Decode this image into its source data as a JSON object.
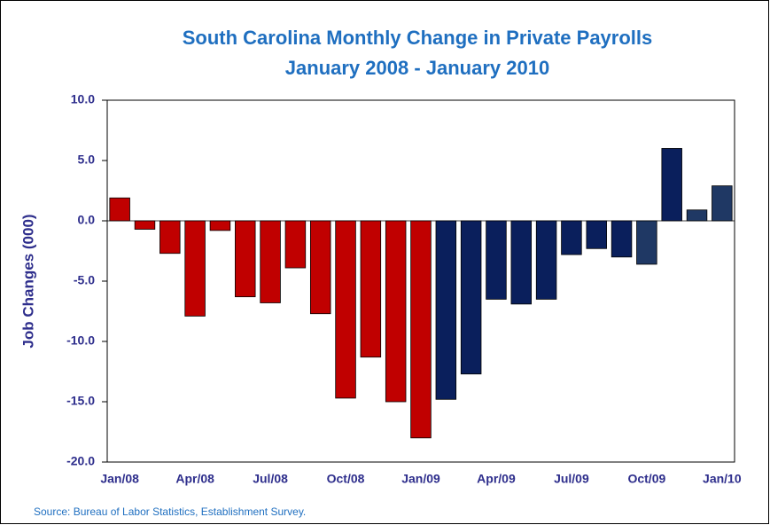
{
  "chart_data": {
    "type": "bar",
    "title": "South Carolina Monthly Change in Private Payrolls",
    "subtitle": "January 2008 - January 2010",
    "y_label": "Job Changes (000)",
    "source": "Source: Bureau of Labor Statistics, Establishment Survey.",
    "categories": [
      "Jan/08",
      null,
      null,
      "Apr/08",
      null,
      null,
      "Jul/08",
      null,
      null,
      "Oct/08",
      null,
      null,
      "Jan/09",
      null,
      null,
      "Apr/09",
      null,
      null,
      "Jul/09",
      null,
      null,
      "Oct/09",
      null,
      null,
      "Jan/10"
    ],
    "values": [
      1.9,
      -0.7,
      -2.7,
      -7.9,
      -0.8,
      -6.3,
      -6.8,
      -3.9,
      -7.7,
      -14.7,
      -11.3,
      -15.0,
      -18.0,
      -14.8,
      -12.7,
      -6.5,
      -6.9,
      -6.5,
      -2.8,
      -2.3,
      -3.0,
      -3.6,
      6.0,
      0.9,
      2.9
    ],
    "colors": [
      "#c00000",
      "#c00000",
      "#c00000",
      "#c00000",
      "#c00000",
      "#c00000",
      "#c00000",
      "#c00000",
      "#c00000",
      "#c00000",
      "#c00000",
      "#c00000",
      "#c00000",
      "#0a1f5c",
      "#0a1f5c",
      "#0a1f5c",
      "#0a1f5c",
      "#0a1f5c",
      "#0a1f5c",
      "#0a1f5c",
      "#0a1f5c",
      "#1f3864",
      "#0a1f5c",
      "#1f3864",
      "#1f3864"
    ],
    "ylim": [
      -20,
      10
    ],
    "yticks": [
      {
        "value": -20,
        "label": "-20.0"
      },
      {
        "value": -15,
        "label": "-15.0"
      },
      {
        "value": -10,
        "label": "-10.0"
      },
      {
        "value": -5,
        "label": "-5.0"
      },
      {
        "value": 0,
        "label": "0.0"
      },
      {
        "value": 5,
        "label": "5.0"
      },
      {
        "value": 10,
        "label": "10.0"
      }
    ],
    "grid": false
  }
}
